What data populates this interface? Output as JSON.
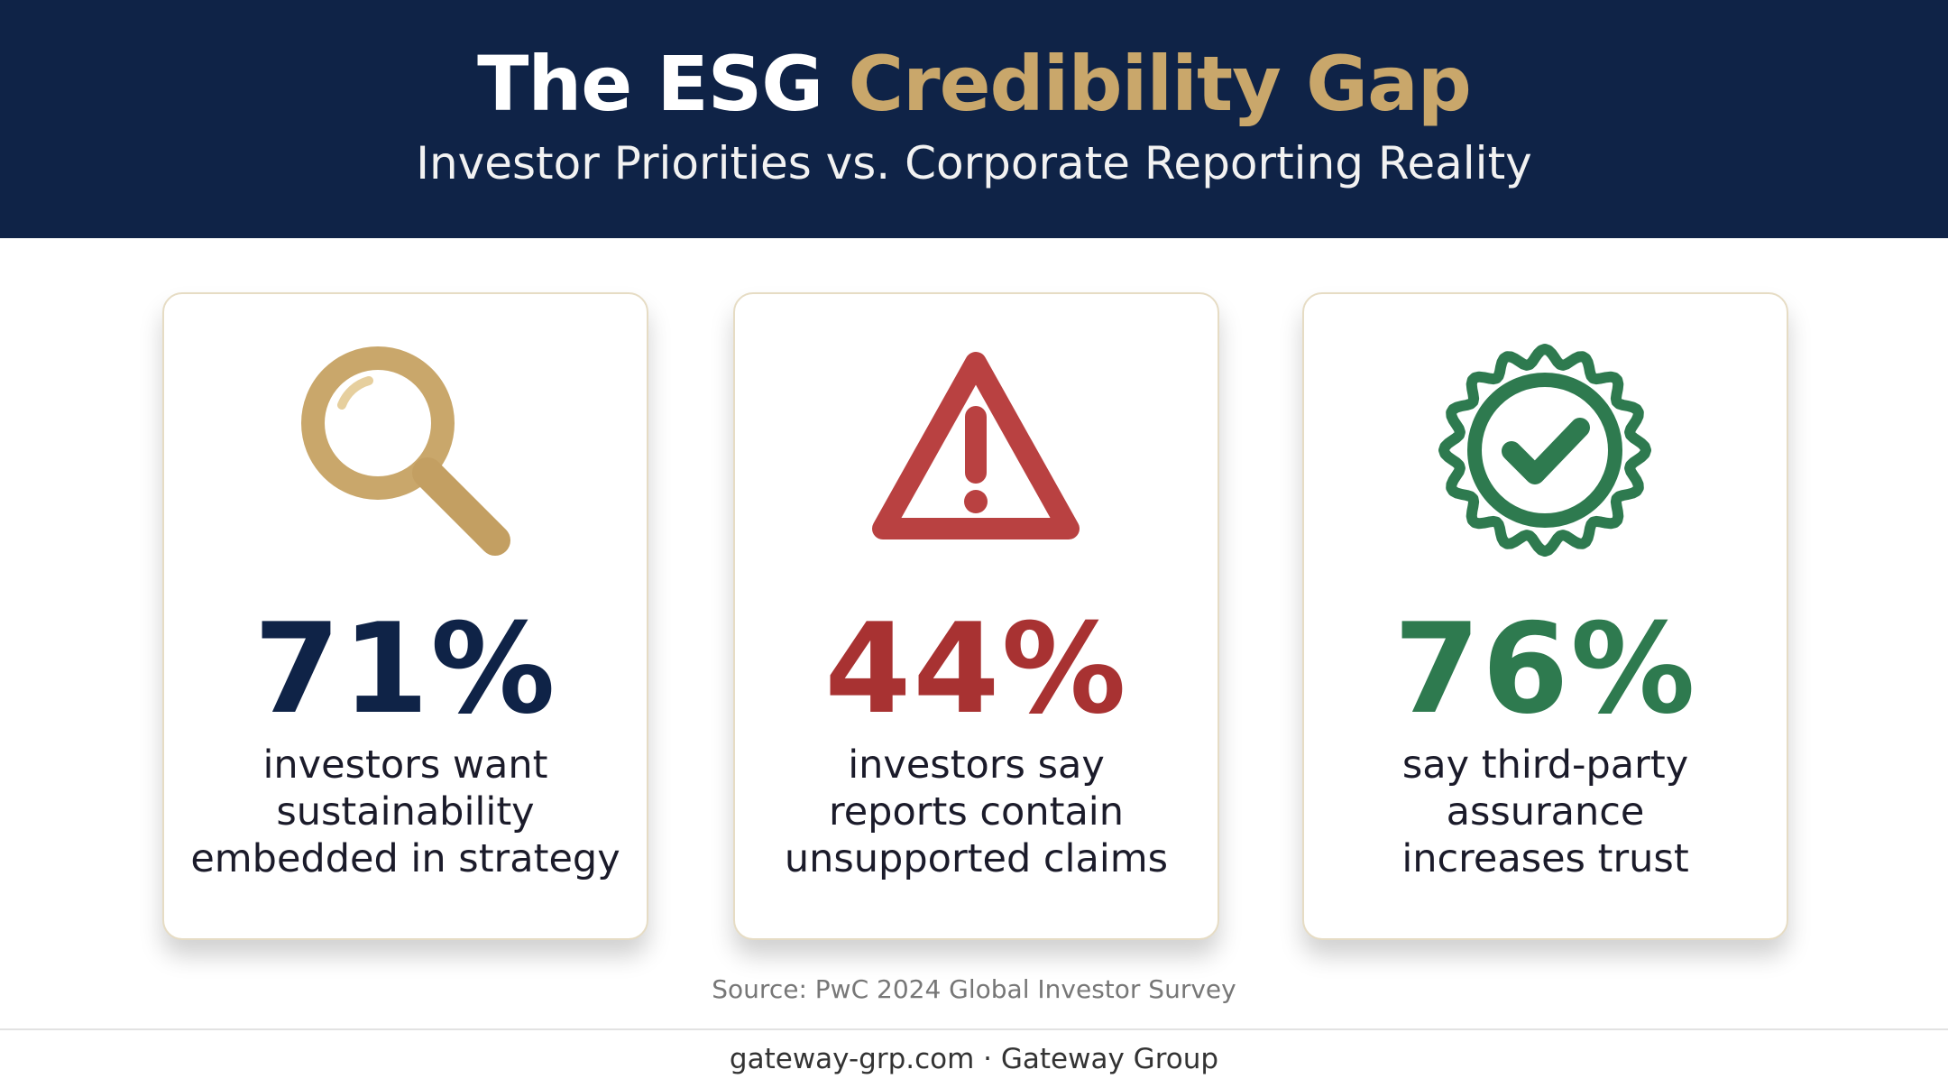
{
  "header": {
    "title_lead": "The ESG",
    "title_highlight": "Credibility Gap",
    "subtitle": "Investor Priorities vs. Corporate Reporting Reality"
  },
  "cards": [
    {
      "stat": "71%",
      "lines": [
        "investors want",
        "sustainability",
        "embedded in strategy"
      ]
    },
    {
      "stat": "44%",
      "lines": [
        "investors say",
        "reports contain",
        "unsupported claims"
      ]
    },
    {
      "stat": "76%",
      "lines": [
        "say third-party",
        "assurance",
        "increases trust"
      ]
    }
  ],
  "source": "Source: PwC 2024 Global Investor Survey",
  "footer": "gateway-grp.com · Gateway Group"
}
